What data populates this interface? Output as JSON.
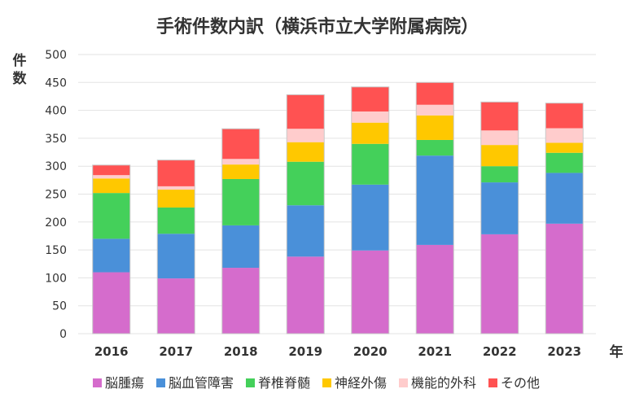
{
  "chart_data": {
    "type": "bar",
    "stacked": true,
    "title": "手術件数内訳（横浜市立大学附属病院）",
    "xlabel": "年",
    "ylabel": "件数",
    "ylim": [
      0,
      500
    ],
    "yticks": [
      0,
      50,
      100,
      150,
      200,
      250,
      300,
      350,
      400,
      450,
      500
    ],
    "grid": true,
    "legend_position": "bottom",
    "categories": [
      "2016",
      "2017",
      "2018",
      "2019",
      "2020",
      "2021",
      "2022",
      "2023"
    ],
    "series": [
      {
        "name": "脳腫瘍",
        "color": "#d56ccc",
        "values": [
          110,
          99,
          118,
          138,
          149,
          159,
          178,
          197
        ]
      },
      {
        "name": "脳血管障害",
        "color": "#4a90d9",
        "values": [
          60,
          80,
          76,
          92,
          118,
          160,
          93,
          91
        ]
      },
      {
        "name": "脊椎脊髄",
        "color": "#44d05a",
        "values": [
          82,
          47,
          83,
          78,
          73,
          28,
          29,
          36
        ]
      },
      {
        "name": "神経外傷",
        "color": "#ffc800",
        "values": [
          26,
          32,
          26,
          35,
          38,
          44,
          38,
          18
        ]
      },
      {
        "name": "機能的外科",
        "color": "#ffcccc",
        "values": [
          6,
          6,
          10,
          24,
          20,
          19,
          26,
          26
        ]
      },
      {
        "name": "その他",
        "color": "#ff5252",
        "values": [
          18,
          47,
          54,
          61,
          44,
          40,
          51,
          45
        ]
      }
    ]
  }
}
